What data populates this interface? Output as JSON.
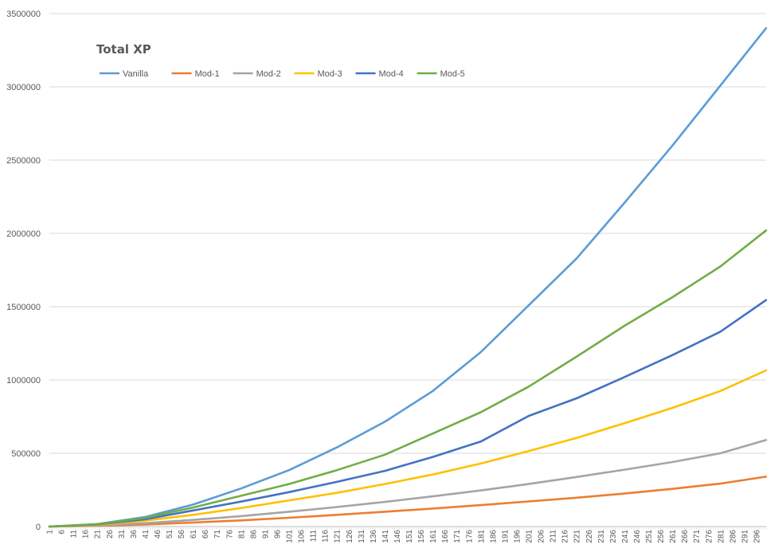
{
  "chart_data": {
    "type": "line",
    "title": "Total XP",
    "xlabel": "",
    "ylabel": "",
    "x_range": [
      1,
      300
    ],
    "x_tick_step": 5,
    "ylim": [
      0,
      3500000
    ],
    "y_ticks": [
      0,
      500000,
      1000000,
      1500000,
      2000000,
      2500000,
      3000000,
      3500000
    ],
    "y_tick_labels": [
      "0",
      "500000",
      "1000000",
      "1500000",
      "2000000",
      "2500000",
      "3000000",
      "3500000"
    ],
    "grid": "horizontal",
    "legend_position": "top-left",
    "series": [
      {
        "name": "Vanilla",
        "color": "#5b9bd5",
        "x": [
          1,
          21,
          41,
          61,
          81,
          101,
          121,
          141,
          161,
          181,
          201,
          221,
          241,
          261,
          281,
          300
        ],
        "values": [
          0,
          17000,
          65000,
          150000,
          260000,
          385000,
          540000,
          715000,
          925000,
          1190000,
          1510000,
          1830000,
          2210000,
          2600000,
          3010000,
          3400000
        ]
      },
      {
        "name": "Mod-1",
        "color": "#ed7d31",
        "x": [
          1,
          21,
          41,
          61,
          81,
          101,
          121,
          141,
          161,
          181,
          201,
          221,
          241,
          261,
          281,
          300
        ],
        "values": [
          0,
          5000,
          14000,
          27000,
          42000,
          60000,
          80000,
          101000,
          123000,
          146000,
          171000,
          197000,
          225000,
          257000,
          293000,
          340000
        ]
      },
      {
        "name": "Mod-2",
        "color": "#a5a5a5",
        "x": [
          1,
          21,
          41,
          61,
          81,
          101,
          121,
          141,
          161,
          181,
          201,
          221,
          241,
          261,
          281,
          300
        ],
        "values": [
          0,
          7000,
          23000,
          45000,
          71000,
          101000,
          133000,
          168000,
          206000,
          246000,
          290000,
          338000,
          388000,
          440000,
          500000,
          590000
        ]
      },
      {
        "name": "Mod-3",
        "color": "#ffc000",
        "x": [
          1,
          21,
          41,
          61,
          81,
          101,
          121,
          141,
          161,
          181,
          201,
          221,
          241,
          261,
          281,
          300
        ],
        "values": [
          0,
          11000,
          40000,
          80000,
          126000,
          178000,
          230000,
          290000,
          355000,
          430000,
          515000,
          605000,
          705000,
          810000,
          925000,
          1065000
        ]
      },
      {
        "name": "Mod-4",
        "color": "#4472c4",
        "x": [
          1,
          21,
          41,
          61,
          81,
          101,
          121,
          141,
          161,
          181,
          201,
          221,
          241,
          261,
          281,
          300
        ],
        "values": [
          0,
          14000,
          50000,
          110000,
          170000,
          235000,
          305000,
          380000,
          475000,
          580000,
          755000,
          875000,
          1020000,
          1170000,
          1330000,
          1545000
        ]
      },
      {
        "name": "Mod-5",
        "color": "#70ad47",
        "x": [
          1,
          21,
          41,
          61,
          81,
          101,
          121,
          141,
          161,
          181,
          201,
          221,
          241,
          261,
          281,
          300
        ],
        "values": [
          0,
          16000,
          60000,
          130000,
          210000,
          290000,
          385000,
          490000,
          635000,
          780000,
          955000,
          1160000,
          1370000,
          1565000,
          1775000,
          2020000
        ]
      }
    ]
  }
}
